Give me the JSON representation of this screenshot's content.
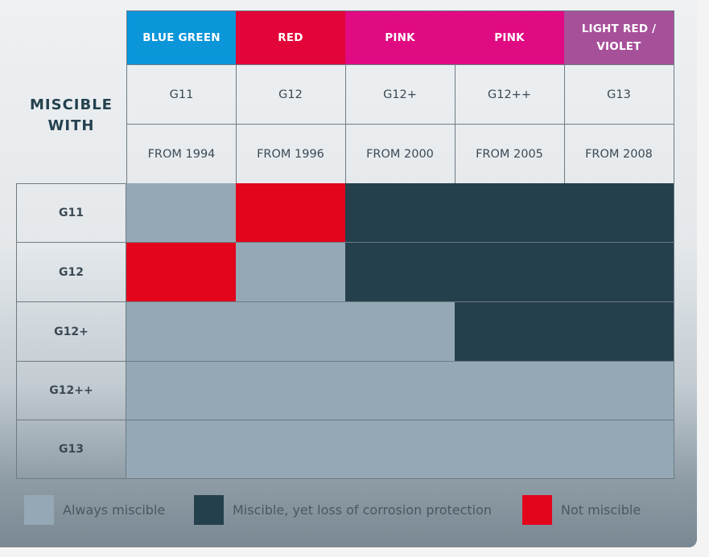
{
  "title": "MISCIBLE WITH",
  "colors": {
    "always": "#94a9b5",
    "loss": "#25404d",
    "not": "#e2051c"
  },
  "columns": [
    {
      "color_name": "BLUE GREEN",
      "bg": "#0a96d9",
      "code": "G11",
      "year": "FROM 1994"
    },
    {
      "color_name": "RED",
      "bg": "#e30439",
      "code": "G12",
      "year": "FROM 1996"
    },
    {
      "color_name": "PINK",
      "bg": "#e00b82",
      "code": "G12+",
      "year": "FROM 2000"
    },
    {
      "color_name": "PINK",
      "bg": "#e00b82",
      "code": "G12++",
      "year": "FROM 2005"
    },
    {
      "color_name": "LIGHT RED / VIOLET",
      "bg": "#a7509a",
      "code": "G13",
      "year": "FROM 2008"
    }
  ],
  "legend": [
    {
      "key": "always",
      "label": "Always miscible"
    },
    {
      "key": "loss",
      "label": "Miscible, yet loss of corrosion protection"
    },
    {
      "key": "not",
      "label": "Not miscible"
    }
  ],
  "chart_data": {
    "type": "heatmap",
    "rows": [
      "G11",
      "G12",
      "G12+",
      "G12++",
      "G13"
    ],
    "columns": [
      "G11",
      "G12",
      "G12+",
      "G12++",
      "G13"
    ],
    "values": [
      [
        "always",
        "not",
        "loss",
        "loss",
        "loss"
      ],
      [
        "not",
        "always",
        "loss",
        "loss",
        "loss"
      ],
      [
        "always",
        "always",
        "always",
        "loss",
        "loss"
      ],
      [
        "always",
        "always",
        "always",
        "always",
        "always"
      ],
      [
        "always",
        "always",
        "always",
        "always",
        "always"
      ]
    ]
  }
}
